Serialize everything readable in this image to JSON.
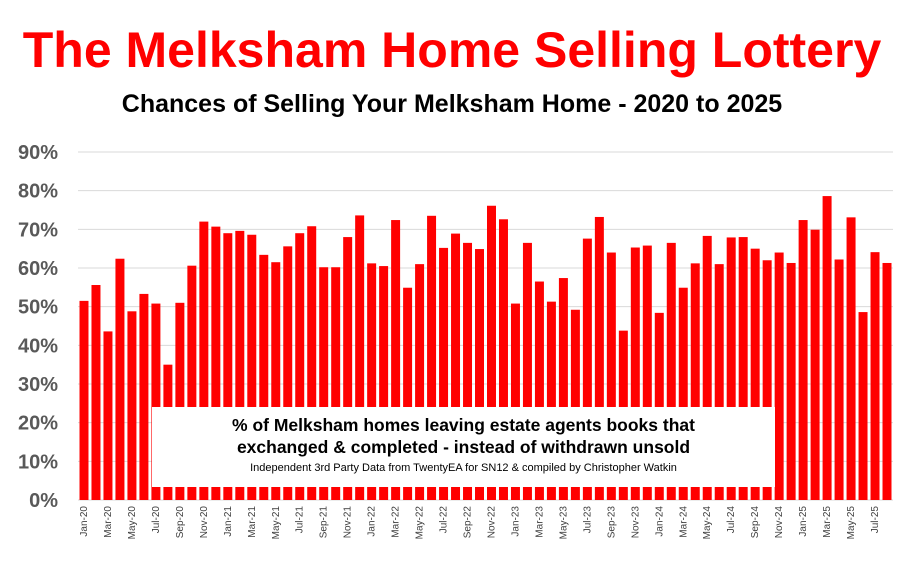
{
  "colors": {
    "title": "#ff0000",
    "bar": "#ff0000",
    "grid": "#d9d9d9",
    "axis_text": "#595959"
  },
  "chart_data": {
    "type": "bar",
    "title": "The Melksham Home Selling Lottery",
    "subtitle": "Chances of Selling Your Melksham Home - 2020 to 2025",
    "ylim": [
      0,
      90
    ],
    "y_ticks": [
      "0%",
      "10%",
      "20%",
      "30%",
      "40%",
      "50%",
      "60%",
      "70%",
      "80%",
      "90%"
    ],
    "grid": true,
    "legend": "none",
    "categories": [
      "Jan-20",
      "Feb-20",
      "Mar-20",
      "Apr-20",
      "May-20",
      "Jun-20",
      "Jul-20",
      "Aug-20",
      "Sep-20",
      "Oct-20",
      "Nov-20",
      "Dec-20",
      "Jan-21",
      "Feb-21",
      "Mar-21",
      "Apr-21",
      "May-21",
      "Jun-21",
      "Jul-21",
      "Aug-21",
      "Sep-21",
      "Oct-21",
      "Nov-21",
      "Dec-21",
      "Jan-22",
      "Feb-22",
      "Mar-22",
      "Apr-22",
      "May-22",
      "Jun-22",
      "Jul-22",
      "Aug-22",
      "Sep-22",
      "Oct-22",
      "Nov-22",
      "Dec-22",
      "Jan-23",
      "Feb-23",
      "Mar-23",
      "Apr-23",
      "May-23",
      "Jun-23",
      "Jul-23",
      "Aug-23",
      "Sep-23",
      "Oct-23",
      "Nov-23",
      "Dec-23",
      "Jan-24",
      "Feb-24",
      "Mar-24",
      "Apr-24",
      "May-24",
      "Jun-24",
      "Jul-24",
      "Aug-24",
      "Sep-24",
      "Oct-24",
      "Nov-24",
      "Dec-24",
      "Jan-25",
      "Feb-25",
      "Mar-25",
      "Apr-25",
      "May-25",
      "Jun-25",
      "Jul-25",
      "Aug-25"
    ],
    "x_tick_labels": [
      "Jan-20",
      "",
      "Mar-20",
      "",
      "May-20",
      "",
      "Jul-20",
      "",
      "Sep-20",
      "",
      "Nov-20",
      "",
      "Jan-21",
      "",
      "Mar-21",
      "",
      "May-21",
      "",
      "Jul-21",
      "",
      "Sep-21",
      "",
      "Nov-21",
      "",
      "Jan-22",
      "",
      "Mar-22",
      "",
      "May-22",
      "",
      "Jul-22",
      "",
      "Sep-22",
      "",
      "Nov-22",
      "",
      "Jan-23",
      "",
      "Mar-23",
      "",
      "May-23",
      "",
      "Jul-23",
      "",
      "Sep-23",
      "",
      "Nov-23",
      "",
      "Jan-24",
      "",
      "Mar-24",
      "",
      "May-24",
      "",
      "Jul-24",
      "",
      "Sep-24",
      "",
      "Nov-24",
      "",
      "Jan-25",
      "",
      "Mar-25",
      "",
      "May-25",
      "",
      "Jul-25",
      ""
    ],
    "values": [
      51.5,
      55.6,
      43.6,
      62.4,
      48.8,
      53.3,
      50.8,
      35.0,
      51.0,
      60.6,
      72.0,
      70.7,
      69.0,
      69.6,
      68.6,
      63.4,
      61.5,
      65.6,
      69.0,
      70.8,
      60.2,
      60.2,
      68.0,
      73.6,
      61.2,
      60.5,
      72.4,
      54.9,
      61.0,
      73.5,
      65.2,
      68.9,
      66.5,
      64.9,
      76.1,
      72.6,
      50.8,
      66.5,
      56.5,
      51.3,
      57.4,
      49.2,
      67.6,
      73.2,
      64.0,
      43.8,
      65.3,
      65.8,
      48.4,
      66.5,
      54.9,
      61.2,
      68.3,
      61.0,
      67.9,
      68.0,
      65.0,
      62.0,
      64.0,
      61.3,
      72.4,
      69.9,
      78.6,
      62.2,
      73.1,
      48.6,
      64.1,
      61.3
    ]
  },
  "annotation": {
    "line1": "% of Melksham homes leaving estate agents books that",
    "line2": "exchanged & completed - instead of withdrawn unsold",
    "line3": "Independent 3rd Party Data from TwentyEA for SN12 & compiled by Christopher Watkin"
  }
}
